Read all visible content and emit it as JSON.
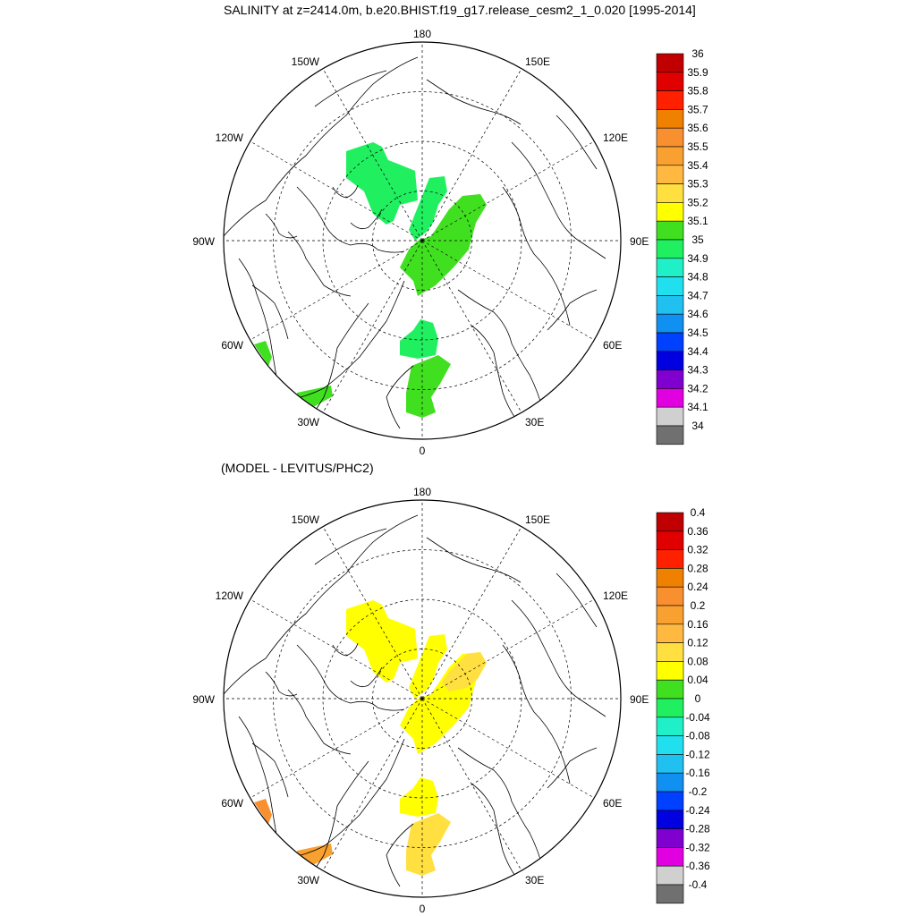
{
  "main_title": "SALINITY at z=2414.0m, b.e20.BHIST.f19_g17.release_cesm2_1_0.020 [1995-2014]",
  "diff_title": "(MODEL - LEVITUS/PHC2)",
  "longitude_labels": {
    "top": "180",
    "bottom": "0",
    "left": "90W",
    "right": "90E",
    "upper_left_1": "150W",
    "upper_left_2": "120W",
    "upper_right_1": "150E",
    "upper_right_2": "120E",
    "lower_left_1": "60W",
    "lower_left_2": "30W",
    "lower_right_1": "60E",
    "lower_right_2": "30E"
  },
  "salinity_colorbar": {
    "labels": [
      "36",
      "35.9",
      "35.8",
      "35.7",
      "35.6",
      "35.5",
      "35.4",
      "35.3",
      "35.2",
      "35.1",
      "35",
      "34.9",
      "34.8",
      "34.7",
      "34.6",
      "34.5",
      "34.4",
      "34.3",
      "34.2",
      "34.1",
      "34"
    ],
    "colors": [
      "#c00000",
      "#e00000",
      "#ff2000",
      "#f08000",
      "#f89030",
      "#f8a030",
      "#ffb840",
      "#ffe040",
      "#ffff00",
      "#40e020",
      "#20f060",
      "#20f0c8",
      "#20e0f0",
      "#20c0f0",
      "#1090f0",
      "#0040ff",
      "#0000e0",
      "#8000d0",
      "#e000e0",
      "#d0d0d0",
      "#707070"
    ]
  },
  "difference_colorbar": {
    "labels": [
      "0.4",
      "0.36",
      "0.32",
      "0.28",
      "0.24",
      "0.2",
      "0.16",
      "0.12",
      "0.08",
      "0.04",
      "0",
      "-0.04",
      "-0.08",
      "-0.12",
      "-0.16",
      "-0.2",
      "-0.24",
      "-0.28",
      "-0.32",
      "-0.36",
      "-0.4"
    ],
    "colors": [
      "#c00000",
      "#e00000",
      "#ff2000",
      "#f08000",
      "#f89030",
      "#f8a030",
      "#ffb840",
      "#ffe040",
      "#ffff00",
      "#40e020",
      "#20f060",
      "#20f0c8",
      "#20e0f0",
      "#20c0f0",
      "#1090f0",
      "#0040ff",
      "#0000e0",
      "#8000d0",
      "#e000e0",
      "#d0d0d0",
      "#707070"
    ]
  },
  "salinity_field": {
    "canada_basin": 34.95,
    "lomonosov_strip": 34.95,
    "makarov_eurasian_basin": 35.05,
    "fram_strait": 34.95,
    "greenland_norwegian_sea": 35.05,
    "baffin_bay": 35.05,
    "labrador_sea": 35.05
  },
  "difference_field": {
    "canada_basin": 0.06,
    "lomonosov_strip": 0.06,
    "makarov_eurasian_basin": 0.06,
    "eurasian_basin_east": 0.1,
    "fram_strait": 0.06,
    "greenland_norwegian_sea": 0.1,
    "baffin_bay": 0.22,
    "labrador_sea": 0.2
  }
}
